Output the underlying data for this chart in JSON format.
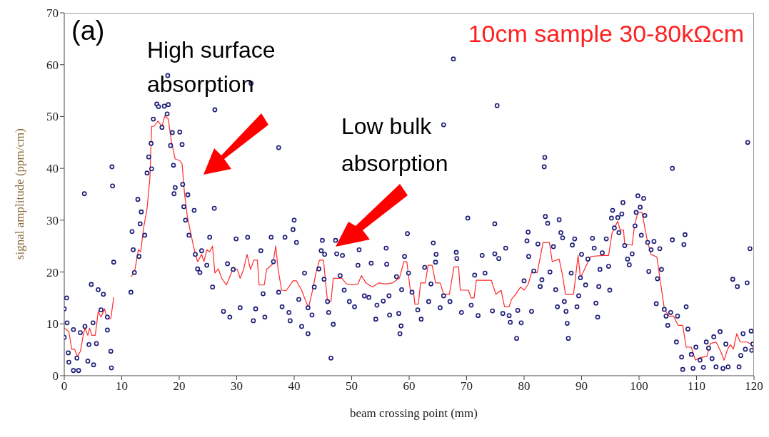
{
  "chart_data": {
    "type": "scatter",
    "title": "10cm sample 30-80kΩcm",
    "xlabel": "beam crossing point (mm)",
    "ylabel": "signal amplitude (ppm/cm)",
    "annotations": [
      "(a)",
      "High surface absorption",
      "Low bulk absorption"
    ],
    "xlim": [
      0,
      120
    ],
    "xticks": [
      0,
      10,
      20,
      30,
      40,
      50,
      60,
      70,
      80,
      90,
      100,
      110,
      120
    ],
    "ylim": [
      0,
      70
    ],
    "yticks": [
      0,
      10,
      20,
      30,
      40,
      50,
      60,
      70
    ],
    "grid": false,
    "legend": false,
    "series": [
      {
        "marker": "circle",
        "color": "#1c1c78",
        "x": [
          0,
          0.4,
          0,
          0.5,
          0.7,
          0.8,
          1.6,
          2.5,
          1.6,
          2.2,
          2.8,
          3.5,
          3.6,
          4.1,
          4.3,
          4.7,
          5.0,
          5.1,
          5.6,
          5.9,
          6.4,
          6.8,
          7.5,
          7.5,
          8.1,
          8.2,
          8.3,
          8.4,
          8.6,
          11.6,
          11.8,
          12.0,
          12.2,
          12.8,
          13.0,
          13.2,
          13.4,
          14.0,
          14.4,
          14.7,
          15.1,
          15.2,
          15.5,
          16.1,
          16.4,
          17.0,
          17.4,
          18.1,
          17.9,
          18.0,
          18.8,
          18.5,
          19.0,
          20.1,
          20.5,
          19.3,
          19.1,
          20.6,
          20.8,
          21.5,
          21.1,
          22.6,
          21.7,
          22.8,
          23.2,
          23.6,
          23.9,
          25.3,
          26.2,
          26.1,
          24.8,
          25.8,
          27.7,
          28.8,
          28.4,
          29.4,
          29.9,
          30.6,
          31.9,
          32.5,
          32.9,
          33.3,
          34.2,
          34.6,
          34.9,
          36.0,
          36.4,
          37.3,
          37.3,
          37.9,
          38.4,
          39.3,
          40.0,
          39.8,
          40.4,
          39.1,
          40.8,
          41.3,
          41.8,
          42.4,
          42.4,
          43.1,
          43.5,
          44.3,
          44.9,
          44.7,
          45.3,
          45.2,
          45.8,
          46.0,
          46.4,
          46.8,
          47.2,
          47.4,
          48.4,
          48.0,
          48.7,
          49.6,
          50.5,
          51.3,
          51.1,
          52.2,
          53.0,
          53.4,
          54.2,
          54.4,
          55.5,
          56.0,
          56.1,
          56.5,
          56.6,
          57.8,
          58.2,
          58.4,
          58.6,
          58.7,
          59.2,
          59.7,
          59.9,
          60.5,
          61.5,
          62.1,
          62.7,
          63.4,
          63.8,
          64.2,
          64.7,
          64.6,
          65.4,
          66.0,
          66.0,
          67.1,
          67.7,
          68.2,
          68.3,
          69.1,
          70.2,
          70.8,
          71.4,
          72.0,
          72.7,
          73.2,
          74.5,
          74.9,
          74.9,
          75.3,
          75.6,
          76.3,
          76.8,
          77.4,
          77.6,
          78.7,
          79.5,
          78.9,
          80.0,
          80.5,
          80.7,
          80.8,
          81.3,
          82.4,
          81.7,
          82.8,
          83.1,
          83.6,
          83.5,
          83.7,
          84.1,
          84.5,
          85.1,
          85.5,
          85.8,
          86.1,
          86.4,
          86.7,
          87.0,
          87.3,
          87.5,
          87.7,
          88.2,
          88.4,
          88.8,
          89.2,
          89.5,
          89.8,
          90.0,
          90.7,
          91.1,
          91.9,
          92.2,
          92.5,
          92.8,
          93.0,
          93.2,
          93.6,
          94.3,
          94.7,
          94.9,
          95.2,
          95.4,
          95.7,
          96.5,
          96.3,
          97.0,
          97.2,
          97.5,
          98.0,
          98.3,
          98.8,
          99.3,
          99.5,
          99.8,
          100.2,
          100.4,
          100.8,
          101.0,
          101.5,
          101.7,
          102.1,
          102.6,
          103.0,
          103.2,
          103.6,
          103.9,
          104.4,
          104.7,
          105.0,
          105.5,
          105.8,
          105.8,
          106.5,
          106.7,
          107.4,
          107.6,
          107.8,
          108.0,
          108.2,
          108.5,
          109.1,
          109.4,
          109.9,
          110.6,
          111.2,
          111.7,
          112.1,
          112.7,
          113.0,
          113.4,
          114.1,
          114.6,
          115.1,
          115.5,
          116.3,
          117.1,
          117.4,
          117.7,
          118.1,
          118.5,
          118.8,
          118.9,
          119.3,
          119.5,
          119.6,
          119.8
        ],
        "values": [
          12.9,
          15.0,
          7.4,
          10.2,
          4.4,
          2.6,
          1.0,
          1.0,
          8.9,
          3.4,
          8.3,
          35.1,
          9.5,
          2.8,
          6.0,
          17.6,
          10.2,
          2.1,
          6.2,
          16.6,
          12.7,
          15.7,
          11.3,
          8.8,
          4.7,
          1.5,
          40.3,
          36.6,
          21.9,
          16.1,
          27.8,
          24.3,
          19.9,
          34.0,
          23.0,
          29.3,
          31.6,
          27.1,
          39.1,
          42.2,
          44.8,
          39.9,
          49.5,
          52.4,
          51.9,
          47.9,
          52.0,
          52.3,
          50.5,
          57.9,
          46.9,
          44.4,
          40.6,
          47.0,
          44.6,
          36.3,
          35.1,
          36.9,
          32.6,
          34.9,
          30.0,
          31.9,
          27.1,
          23.4,
          20.6,
          19.9,
          24.1,
          26.7,
          51.3,
          32.3,
          21.3,
          17.1,
          12.4,
          11.3,
          21.6,
          20.5,
          26.4,
          13.1,
          26.7,
          56.4,
          10.6,
          12.9,
          24.1,
          15.8,
          11.3,
          26.7,
          22.0,
          44.0,
          16.1,
          13.3,
          26.7,
          10.6,
          30.0,
          28.2,
          25.7,
          12.2,
          14.7,
          9.5,
          19.8,
          8.1,
          13.1,
          11.7,
          17.1,
          20.6,
          26.1,
          24.1,
          23.4,
          18.6,
          14.3,
          12.2,
          3.4,
          9.9,
          26.1,
          23.5,
          23.2,
          19.3,
          16.5,
          14.3,
          13.3,
          24.3,
          21.3,
          15.4,
          15.1,
          21.7,
          10.9,
          13.6,
          14.4,
          24.6,
          21.5,
          15.4,
          11.7,
          19.1,
          12.0,
          8.1,
          9.6,
          16.6,
          23.0,
          27.4,
          19.8,
          16.1,
          12.7,
          10.9,
          20.9,
          14.3,
          17.7,
          25.6,
          23.4,
          21.9,
          13.1,
          15.4,
          48.4,
          14.3,
          61.1,
          23.8,
          22.6,
          12.2,
          30.4,
          13.6,
          19.4,
          11.6,
          23.2,
          19.8,
          12.5,
          23.5,
          29.3,
          52.1,
          22.6,
          12.0,
          24.6,
          11.6,
          10.3,
          7.2,
          10.2,
          12.6,
          18.3,
          26.0,
          27.7,
          23.0,
          12.4,
          25.4,
          20.2,
          17.2,
          18.5,
          42.1,
          40.3,
          30.7,
          29.4,
          20.0,
          24.9,
          16.6,
          13.3,
          30.1,
          27.6,
          26.6,
          14.3,
          12.4,
          10.1,
          7.2,
          19.8,
          25.2,
          26.4,
          13.3,
          15.4,
          18.9,
          23.4,
          17.5,
          22.5,
          26.5,
          24.6,
          14.0,
          11.3,
          17.2,
          20.5,
          23.7,
          26.4,
          21.1,
          16.5,
          30.4,
          31.9,
          28.5,
          27.6,
          30.5,
          31.2,
          33.4,
          25.1,
          22.5,
          21.4,
          23.5,
          28.9,
          31.5,
          34.7,
          32.5,
          27.1,
          34.2,
          30.9,
          25.7,
          20.1,
          24.3,
          25.9,
          13.9,
          18.7,
          24.5,
          20.5,
          12.8,
          11.5,
          9.7,
          12.2,
          26.2,
          40.0,
          6.5,
          11.5,
          3.6,
          1.2,
          25.3,
          27.2,
          13.3,
          9.0,
          4.1,
          1.4,
          5.5,
          3.0,
          1.6,
          6.5,
          5.3,
          3.3,
          7.5,
          1.7,
          8.5,
          1.4,
          6.1,
          1.7,
          18.6,
          17.2,
          1.7,
          3.9,
          8.1,
          5.1,
          17.9,
          45.0,
          24.5,
          8.6,
          4.9,
          6.1
        ]
      },
      {
        "type": "line",
        "marker": "none",
        "color": "#ff2a2a",
        "x": [
          0,
          0.8,
          1.3,
          1.8,
          2.3,
          2.8,
          3.3,
          3.6,
          4.1,
          4.4,
          4.8,
          5.4,
          5.9,
          6.4,
          7.0,
          7.5,
          8.1,
          8.6,
          10,
          11.6,
          12.2,
          12.9,
          13.3,
          13.8,
          14.4,
          14.9,
          15.2,
          15.6,
          16.3,
          17.0,
          17.5,
          18.1,
          18.6,
          19.3,
          20.1,
          20.5,
          20.9,
          21.4,
          22.0,
          22.7,
          23.2,
          23.9,
          24.3,
          24.8,
          25.3,
          25.8,
          26.2,
          26.8,
          27.4,
          28.2,
          28.7,
          29.3,
          30.1,
          30.6,
          31.2,
          31.8,
          32.4,
          33.0,
          33.6,
          33.9,
          34.8,
          35.2,
          36.3,
          36.8,
          37.2,
          37.8,
          38.6,
          39.8,
          40.4,
          41.3,
          41.9,
          42.5,
          43.2,
          43.8,
          44.4,
          45.1,
          45.4,
          45.8,
          46.4,
          46.8,
          48.3,
          49.1,
          50.1,
          51.1,
          51.7,
          52.5,
          53.6,
          54.7,
          55.9,
          57.1,
          58.3,
          59.1,
          59.6,
          60.2,
          60.8,
          61.0,
          61.6,
          62.0,
          62.8,
          63.3,
          64.0,
          64.6,
          65.4,
          66.0,
          67.0,
          67.8,
          68.6,
          68.9,
          70.3,
          70.8,
          71.3,
          71.7,
          73.4,
          74.3,
          75.1,
          76.0,
          76.6,
          77.4,
          77.8,
          78.6,
          79.4,
          80.0,
          80.7,
          81.3,
          82.3,
          83.3,
          84.4,
          84.9,
          86.1,
          86.7,
          87.2,
          88.6,
          89.4,
          89.8,
          90.8,
          91.6,
          93.7,
          94.7,
          95.3,
          96.3,
          96.7,
          97.3,
          97.5,
          98.8,
          99.2,
          99.8,
          100.5,
          101.5,
          102.1,
          103.1,
          104.4,
          105.2,
          106.0,
          106.8,
          107.6,
          108.2,
          109.1,
          109.8,
          110.6,
          111.8,
          112.4,
          113.4,
          114.2,
          114.8,
          115.4,
          115.9,
          116.4,
          117.0,
          117.6,
          118.8,
          119.6,
          120.0
        ],
        "values": [
          9.2,
          8.5,
          5.1,
          5.1,
          3.7,
          4.7,
          7.8,
          9.2,
          7.8,
          9.2,
          7.8,
          7.8,
          12.4,
          11.3,
          12.9,
          10.9,
          11.0,
          15.1,
          null,
          19.1,
          19.9,
          24.3,
          23.9,
          28.5,
          32.2,
          38.1,
          48.1,
          48.1,
          49.1,
          48.1,
          50.1,
          49.5,
          45.4,
          41.8,
          41.5,
          40.9,
          35.4,
          30.8,
          27.5,
          23.9,
          22.0,
          23.4,
          22.0,
          24.3,
          23.9,
          25.0,
          19.8,
          20.6,
          18.8,
          17.5,
          18.8,
          20.5,
          20.5,
          18.8,
          20.5,
          23.4,
          20.5,
          22.3,
          22.3,
          17.5,
          17.5,
          20.5,
          21.6,
          25.0,
          20.6,
          16.5,
          16.4,
          18.3,
          18.3,
          16.5,
          14.7,
          13.1,
          16.5,
          19.9,
          22.3,
          22.3,
          18.8,
          14.3,
          14.3,
          18.8,
          18.8,
          17.7,
          17.5,
          17.7,
          19.3,
          17.9,
          17.1,
          17.9,
          17.7,
          17.9,
          18.8,
          22.0,
          22.0,
          16.5,
          15.8,
          13.8,
          13.8,
          17.9,
          17.9,
          21.3,
          21.3,
          17.9,
          17.9,
          15.7,
          15.7,
          21.0,
          21.0,
          16.5,
          16.5,
          15.0,
          15.0,
          18.4,
          18.4,
          18.4,
          15.7,
          16.5,
          13.3,
          13.3,
          14.7,
          15.8,
          17.1,
          16.5,
          17.6,
          19.9,
          19.9,
          25.7,
          25.7,
          22.0,
          22.5,
          19.3,
          15.7,
          15.7,
          23.2,
          18.8,
          21.2,
          23.0,
          23.2,
          23.2,
          27.5,
          29.8,
          28.1,
          28.1,
          25.4,
          25.2,
          28.9,
          31.5,
          31.5,
          25.7,
          23.4,
          22.9,
          12.9,
          11.5,
          11.5,
          9.7,
          9.7,
          5.5,
          5.5,
          3.0,
          3.5,
          3.7,
          6.2,
          6.5,
          4.7,
          3.0,
          5.1,
          6.0,
          5.1,
          8.1,
          6.5,
          6.5,
          6.0,
          5.1
        ]
      }
    ]
  }
}
